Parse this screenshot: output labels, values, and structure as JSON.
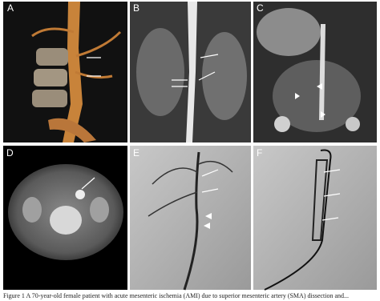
{
  "panels": [
    {
      "label": "A"
    },
    {
      "label": "B"
    },
    {
      "label": "C"
    },
    {
      "label": "D"
    },
    {
      "label": "E"
    },
    {
      "label": "F"
    }
  ],
  "caption": "Figure 1 A 70-year-old female patient with acute mesenteric ischemia (AMI) due to superior mesenteric artery (SMA) dissection and..."
}
